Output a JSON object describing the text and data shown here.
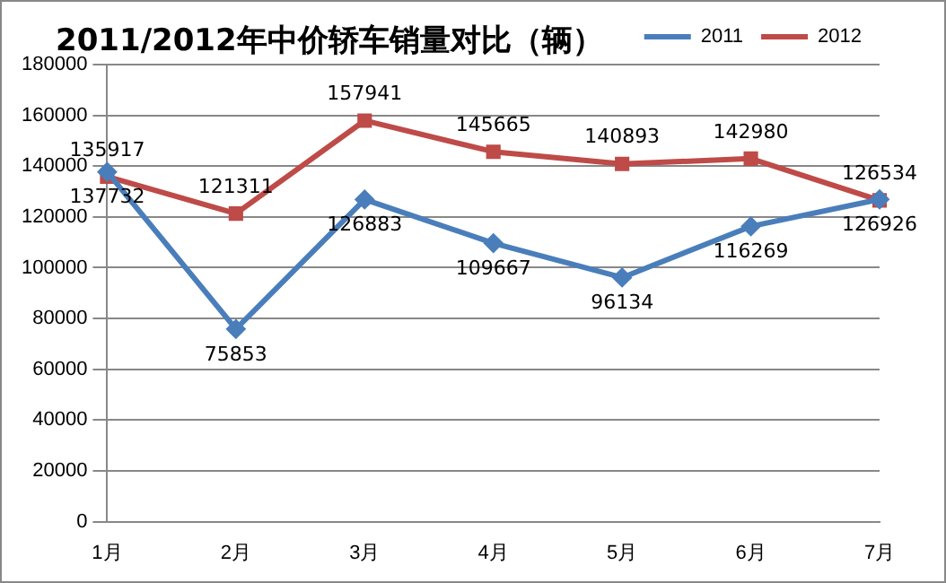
{
  "chart_data": {
    "type": "line",
    "title": "2011/2012年中价轿车销量对比（辆）",
    "categories": [
      "1月",
      "2月",
      "3月",
      "4月",
      "5月",
      "6月",
      "7月"
    ],
    "series": [
      {
        "name": "2011",
        "color": "#4a7ebb",
        "marker": "diamond",
        "values": [
          137732,
          75853,
          126883,
          109667,
          96134,
          116269,
          126926
        ]
      },
      {
        "name": "2012",
        "color": "#be4b48",
        "marker": "square",
        "values": [
          135917,
          121311,
          157941,
          145665,
          140893,
          142980,
          126534
        ]
      }
    ],
    "ylim": [
      0,
      180000
    ],
    "yticks": [
      0,
      20000,
      40000,
      60000,
      80000,
      100000,
      120000,
      140000,
      160000,
      180000
    ],
    "grid": "y",
    "legend": "top right",
    "data_labels": true
  }
}
